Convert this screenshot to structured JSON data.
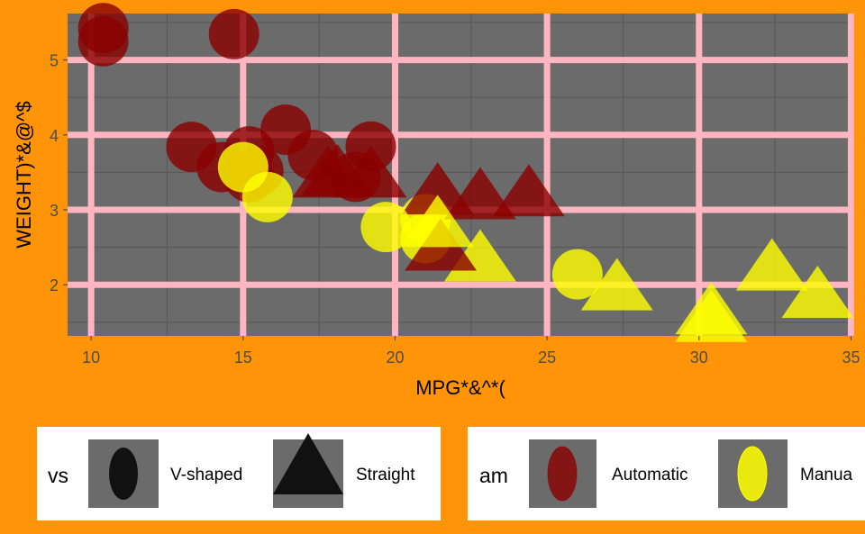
{
  "chart_data": {
    "type": "scatter",
    "xlabel": "MPG*&^*(",
    "ylabel": "WEIGHT)*&@^$",
    "xlim": [
      9.225,
      35.075
    ],
    "ylim": [
      1.318,
      5.62
    ],
    "xticks": [
      10,
      15,
      20,
      25,
      30,
      35
    ],
    "yticks": [
      2,
      3,
      4,
      5
    ],
    "grid": true,
    "legend_position": "bottom",
    "colors": {
      "background": "#FF9408",
      "panel": "#6B6B6B",
      "major_grid": "#FFB6C1",
      "minor_grid": "#5A5A5A",
      "Automatic": "#8B0000",
      "Manual": "#FFFF00",
      "shape_key": "#111111"
    },
    "legends": [
      {
        "title": "vs",
        "entries": [
          {
            "label": "V-shaped",
            "shape": "circle"
          },
          {
            "label": "Straight",
            "shape": "triangle"
          }
        ]
      },
      {
        "title": "am",
        "entries": [
          {
            "label": "Automatic",
            "color": "#8B0000"
          },
          {
            "label": "Manua",
            "color": "#FFFF00"
          }
        ]
      }
    ],
    "points": [
      {
        "x": 21.0,
        "y": 2.62,
        "vs": "V-shaped",
        "am": "Manual"
      },
      {
        "x": 21.0,
        "y": 2.875,
        "vs": "V-shaped",
        "am": "Manual"
      },
      {
        "x": 22.8,
        "y": 2.32,
        "vs": "Straight",
        "am": "Manual"
      },
      {
        "x": 21.4,
        "y": 3.215,
        "vs": "Straight",
        "am": "Automatic"
      },
      {
        "x": 18.7,
        "y": 3.44,
        "vs": "V-shaped",
        "am": "Automatic"
      },
      {
        "x": 18.1,
        "y": 3.46,
        "vs": "Straight",
        "am": "Automatic"
      },
      {
        "x": 14.3,
        "y": 3.57,
        "vs": "V-shaped",
        "am": "Automatic"
      },
      {
        "x": 24.4,
        "y": 3.19,
        "vs": "Straight",
        "am": "Automatic"
      },
      {
        "x": 22.8,
        "y": 3.15,
        "vs": "Straight",
        "am": "Automatic"
      },
      {
        "x": 19.2,
        "y": 3.44,
        "vs": "Straight",
        "am": "Automatic"
      },
      {
        "x": 17.8,
        "y": 3.44,
        "vs": "Straight",
        "am": "Automatic"
      },
      {
        "x": 16.4,
        "y": 4.07,
        "vs": "V-shaped",
        "am": "Automatic"
      },
      {
        "x": 17.3,
        "y": 3.73,
        "vs": "V-shaped",
        "am": "Automatic"
      },
      {
        "x": 15.2,
        "y": 3.78,
        "vs": "V-shaped",
        "am": "Automatic"
      },
      {
        "x": 10.4,
        "y": 5.25,
        "vs": "V-shaped",
        "am": "Automatic"
      },
      {
        "x": 10.4,
        "y": 5.424,
        "vs": "V-shaped",
        "am": "Automatic"
      },
      {
        "x": 14.7,
        "y": 5.345,
        "vs": "V-shaped",
        "am": "Automatic"
      },
      {
        "x": 32.4,
        "y": 2.2,
        "vs": "Straight",
        "am": "Manual"
      },
      {
        "x": 30.4,
        "y": 1.615,
        "vs": "Straight",
        "am": "Manual"
      },
      {
        "x": 33.9,
        "y": 1.835,
        "vs": "Straight",
        "am": "Manual"
      },
      {
        "x": 21.5,
        "y": 2.465,
        "vs": "Straight",
        "am": "Automatic"
      },
      {
        "x": 15.5,
        "y": 3.52,
        "vs": "V-shaped",
        "am": "Automatic"
      },
      {
        "x": 15.2,
        "y": 3.435,
        "vs": "V-shaped",
        "am": "Automatic"
      },
      {
        "x": 13.3,
        "y": 3.84,
        "vs": "V-shaped",
        "am": "Automatic"
      },
      {
        "x": 19.2,
        "y": 3.845,
        "vs": "V-shaped",
        "am": "Automatic"
      },
      {
        "x": 27.3,
        "y": 1.935,
        "vs": "Straight",
        "am": "Manual"
      },
      {
        "x": 26.0,
        "y": 2.14,
        "vs": "V-shaped",
        "am": "Manual"
      },
      {
        "x": 30.4,
        "y": 1.513,
        "vs": "Straight",
        "am": "Manual"
      },
      {
        "x": 15.8,
        "y": 3.17,
        "vs": "V-shaped",
        "am": "Manual"
      },
      {
        "x": 19.7,
        "y": 2.77,
        "vs": "V-shaped",
        "am": "Manual"
      },
      {
        "x": 15.0,
        "y": 3.57,
        "vs": "V-shaped",
        "am": "Manual"
      },
      {
        "x": 21.4,
        "y": 2.78,
        "vs": "Straight",
        "am": "Manual"
      }
    ]
  }
}
